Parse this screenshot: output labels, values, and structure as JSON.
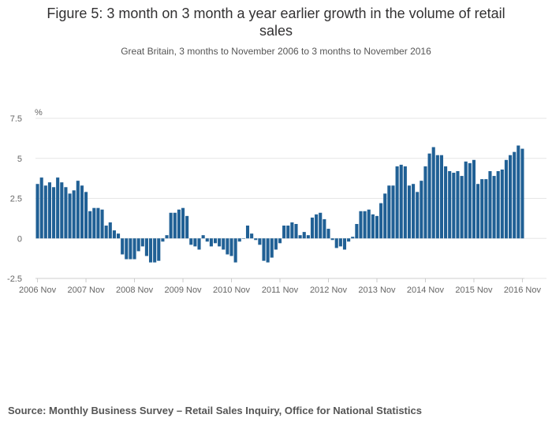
{
  "title_line1": "Figure 5: 3 month on 3 month a year earlier growth in the volume of retail",
  "title_line2": "sales",
  "subtitle": "Great Britain, 3 months to November 2006 to 3 months to November 2016",
  "source": "Source: Monthly Business Survey – Retail Sales Inquiry, Office for National Statistics",
  "colors": {
    "bar": "#206095",
    "grid": "#e6e6e6",
    "axis": "#cccccc",
    "text": "#666666"
  },
  "chart_data": {
    "type": "bar",
    "title": "Figure 5: 3 month on 3 month a year earlier growth in the volume of retail sales",
    "subtitle": "Great Britain, 3 months to November 2006 to 3 months to November 2016",
    "ylabel": "%",
    "xlabel": "",
    "ylim": [
      -2.5,
      7.5
    ],
    "yticks": [
      -2.5,
      0,
      2.5,
      5,
      7.5
    ],
    "ytick_labels": [
      "-2.5",
      "0",
      "2.5",
      "5",
      "7.5"
    ],
    "grid": true,
    "legend": "none",
    "x_start": "2006 Nov",
    "x_tick_labels": [
      "2006 Nov",
      "2007 Nov",
      "2008 Nov",
      "2009 Nov",
      "2010 Nov",
      "2011 Nov",
      "2012 Nov",
      "2013 Nov",
      "2014 Nov",
      "2015 Nov",
      "2016 Nov"
    ],
    "values": [
      3.4,
      3.8,
      3.3,
      3.5,
      3.2,
      3.8,
      3.5,
      3.2,
      2.8,
      3.0,
      3.6,
      3.3,
      2.9,
      1.7,
      1.9,
      1.9,
      1.8,
      0.8,
      1.0,
      0.5,
      0.3,
      -1.0,
      -1.3,
      -1.3,
      -1.3,
      -0.8,
      -0.5,
      -1.1,
      -1.5,
      -1.5,
      -1.4,
      -0.2,
      0.2,
      1.6,
      1.6,
      1.8,
      1.9,
      1.4,
      -0.4,
      -0.5,
      -0.7,
      0.2,
      -0.2,
      -0.5,
      -0.3,
      -0.5,
      -0.7,
      -1.0,
      -1.1,
      -1.5,
      -0.2,
      0.0,
      0.8,
      0.3,
      -0.1,
      -0.4,
      -1.4,
      -1.5,
      -1.2,
      -0.7,
      -0.3,
      0.8,
      0.8,
      1.0,
      0.9,
      0.2,
      0.4,
      0.2,
      1.3,
      1.5,
      1.6,
      1.2,
      0.6,
      -0.1,
      -0.6,
      -0.5,
      -0.7,
      -0.2,
      0.1,
      0.9,
      1.7,
      1.7,
      1.8,
      1.5,
      1.4,
      2.2,
      2.8,
      3.3,
      3.3,
      4.5,
      4.6,
      4.5,
      3.3,
      3.4,
      2.9,
      3.6,
      4.5,
      5.3,
      5.7,
      5.2,
      5.2,
      4.5,
      4.2,
      4.1,
      4.2,
      3.9,
      4.8,
      4.7,
      4.9,
      3.4,
      3.7,
      3.7,
      4.2,
      3.9,
      4.2,
      4.3,
      4.9,
      5.2,
      5.4,
      5.8,
      5.6
    ]
  }
}
